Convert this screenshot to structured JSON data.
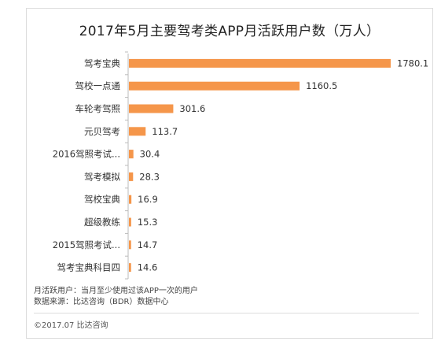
{
  "chart_data": {
    "type": "bar",
    "orientation": "horizontal",
    "title": "2017年5月主要驾考类APP月活跃用户数（万人）",
    "categories": [
      "驾考宝典",
      "驾校一点通",
      "车轮考驾照",
      "元贝驾考",
      "2016驾照考试...",
      "驾考模拟",
      "驾校宝典",
      "超级教练",
      "2015驾照考试...",
      "驾考宝典科目四"
    ],
    "values": [
      1780.1,
      1160.5,
      301.6,
      113.7,
      30.4,
      28.3,
      16.9,
      15.3,
      14.7,
      14.6
    ],
    "value_labels": [
      "1780.1",
      "1160.5",
      "301.6",
      "113.7",
      "30.4",
      "28.3",
      "16.9",
      "15.3",
      "14.7",
      "14.6"
    ],
    "xlim": [
      0,
      1780.1
    ],
    "grid": false,
    "legend": "none",
    "bar_color": "#f5964a"
  },
  "notes": {
    "definition": "月活跃用户：当月至少使用过该APP一次的用户",
    "source": "数据来源：比达咨询（BDR）数据中心"
  },
  "footer": {
    "copyright": "©2017.07  比达咨询"
  }
}
